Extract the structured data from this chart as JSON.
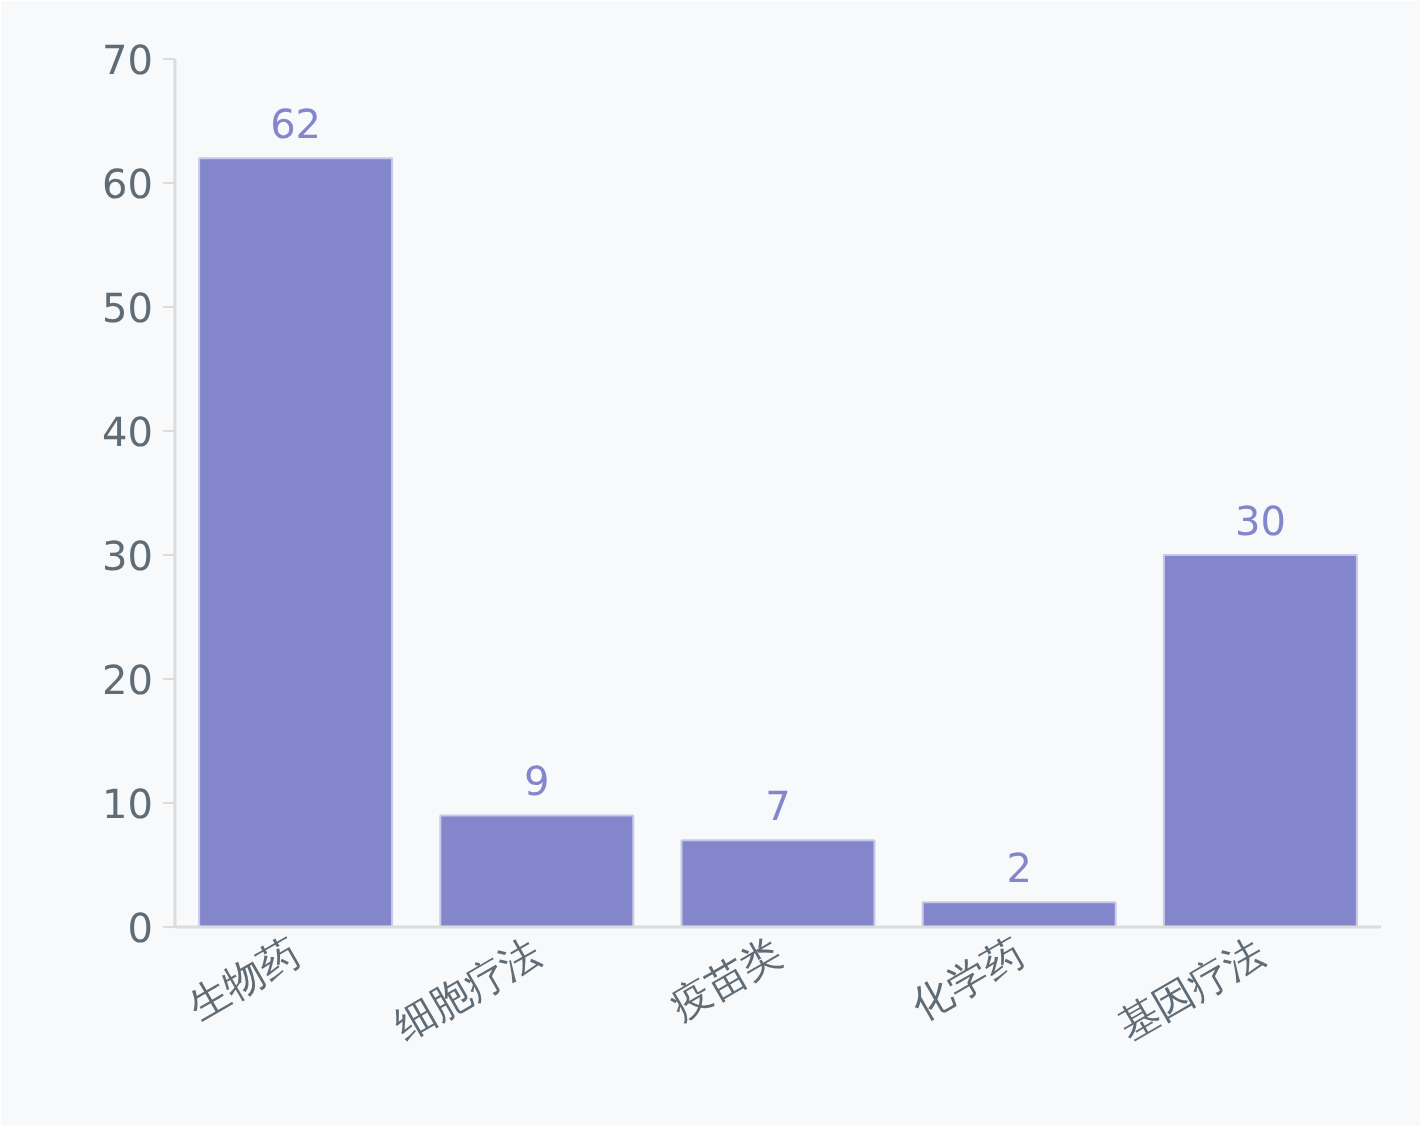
{
  "chart_data": {
    "type": "bar",
    "categories": [
      "生物药",
      "细胞疗法",
      "疫苗类",
      "化学药",
      "基因疗法"
    ],
    "values": [
      62,
      9,
      7,
      2,
      30
    ],
    "color": "#8486cc",
    "ylim": [
      0,
      70
    ],
    "yticks": [
      0,
      10,
      20,
      30,
      40,
      50,
      60,
      70
    ],
    "data_labels": true
  }
}
